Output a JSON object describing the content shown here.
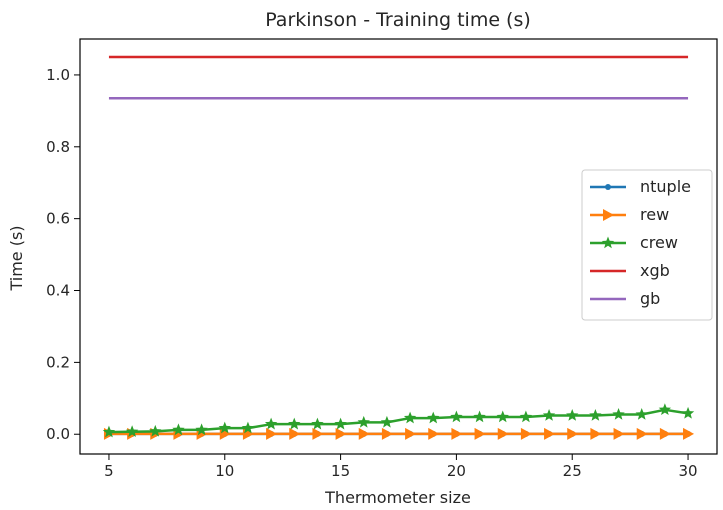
{
  "chart_data": {
    "type": "line",
    "title": "Parkinson - Training time (s)",
    "xlabel": "Thermometer size",
    "ylabel": "Time (s)",
    "xlim": [
      3.75,
      31.25
    ],
    "ylim": [
      -0.055,
      1.1
    ],
    "xticks": [
      5,
      10,
      15,
      20,
      25,
      30
    ],
    "yticks": [
      0.0,
      0.2,
      0.4,
      0.6,
      0.8,
      1.0
    ],
    "xtick_labels": [
      "5",
      "10",
      "15",
      "20",
      "25",
      "30"
    ],
    "ytick_labels": [
      "0.0",
      "0.2",
      "0.4",
      "0.6",
      "0.8",
      "1.0"
    ],
    "grid": false,
    "legend_position": "center-right",
    "x": [
      5,
      6,
      7,
      8,
      9,
      10,
      11,
      12,
      13,
      14,
      15,
      16,
      17,
      18,
      19,
      20,
      21,
      22,
      23,
      24,
      25,
      26,
      27,
      28,
      29,
      30
    ],
    "series": [
      {
        "name": "ntuple",
        "color": "#1f77b4",
        "marker": "dot",
        "values": [
          0.001,
          0.001,
          0.001,
          0.001,
          0.001,
          0.001,
          0.001,
          0.001,
          0.001,
          0.001,
          0.001,
          0.001,
          0.001,
          0.001,
          0.001,
          0.001,
          0.001,
          0.001,
          0.001,
          0.001,
          0.001,
          0.001,
          0.001,
          0.001,
          0.001,
          0.001
        ]
      },
      {
        "name": "rew",
        "color": "#ff7f0e",
        "marker": "triangle-right",
        "values": [
          0.001,
          0.001,
          0.001,
          0.001,
          0.001,
          0.001,
          0.001,
          0.001,
          0.001,
          0.001,
          0.001,
          0.001,
          0.001,
          0.001,
          0.001,
          0.001,
          0.001,
          0.001,
          0.001,
          0.001,
          0.001,
          0.001,
          0.001,
          0.001,
          0.001,
          0.001
        ]
      },
      {
        "name": "crew",
        "color": "#2ca02c",
        "marker": "star",
        "values": [
          0.006,
          0.007,
          0.008,
          0.012,
          0.012,
          0.017,
          0.017,
          0.028,
          0.028,
          0.028,
          0.028,
          0.033,
          0.033,
          0.045,
          0.045,
          0.048,
          0.048,
          0.048,
          0.048,
          0.052,
          0.052,
          0.052,
          0.055,
          0.055,
          0.068,
          0.058
        ]
      },
      {
        "name": "xgb",
        "color": "#d62728",
        "marker": "none",
        "values": [
          1.05,
          1.05,
          1.05,
          1.05,
          1.05,
          1.05,
          1.05,
          1.05,
          1.05,
          1.05,
          1.05,
          1.05,
          1.05,
          1.05,
          1.05,
          1.05,
          1.05,
          1.05,
          1.05,
          1.05,
          1.05,
          1.05,
          1.05,
          1.05,
          1.05,
          1.05
        ]
      },
      {
        "name": "gb",
        "color": "#9467bd",
        "marker": "none",
        "values": [
          0.935,
          0.935,
          0.935,
          0.935,
          0.935,
          0.935,
          0.935,
          0.935,
          0.935,
          0.935,
          0.935,
          0.935,
          0.935,
          0.935,
          0.935,
          0.935,
          0.935,
          0.935,
          0.935,
          0.935,
          0.935,
          0.935,
          0.935,
          0.935,
          0.935,
          0.935
        ]
      }
    ]
  }
}
